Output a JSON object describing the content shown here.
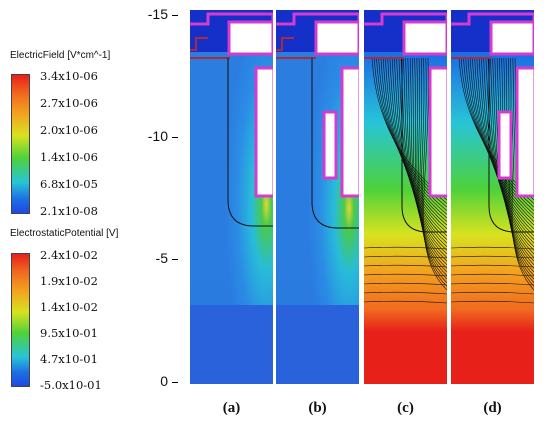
{
  "legends": [
    {
      "title": "ElectricField [V*cm^-1]",
      "ticks": [
        "3.4x10-06",
        "2.7x10-06",
        "2.0x10-06",
        "1.4x10-06",
        "6.8x10-05",
        "2.1x10-08"
      ],
      "colors": [
        "#e8201a",
        "#f3a21f",
        "#d9e21f",
        "#4ed23a",
        "#27c4d8",
        "#1d49e3"
      ]
    },
    {
      "title": "ElectrostaticPotential [V]",
      "ticks": [
        "2.4x10-02",
        "1.9x10-02",
        "1.4x10-02",
        "9.5x10-01",
        "4.7x10-01",
        "-5.0x10-01"
      ],
      "colors": [
        "#e8201a",
        "#f3a21f",
        "#d9e21f",
        "#4ed23a",
        "#27c4d8",
        "#1d49e3"
      ]
    }
  ],
  "y_axis": {
    "ticks": [
      "-15",
      "-10",
      "-5",
      "0"
    ],
    "values": [
      -15,
      -10,
      -5,
      0
    ],
    "range": [
      -15,
      0
    ]
  },
  "panels": [
    {
      "label": "(a)",
      "quantity": "ElectricField"
    },
    {
      "label": "(b)",
      "quantity": "ElectricField"
    },
    {
      "label": "(c)",
      "quantity": "ElectrostaticPotential"
    },
    {
      "label": "(d)",
      "quantity": "ElectrostaticPotential"
    }
  ],
  "colors": {
    "outline": "#d63ad0",
    "field_blue": "#2b7ce0",
    "dark_blue": "#1430c8"
  }
}
